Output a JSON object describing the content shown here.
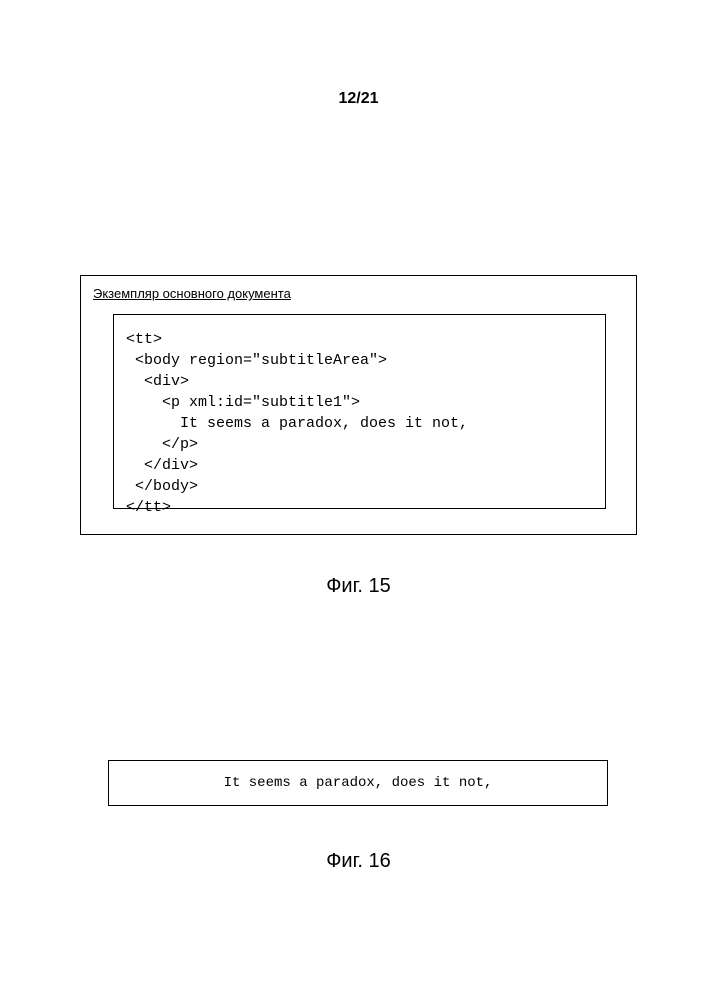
{
  "page_number": "12/21",
  "figure15": {
    "header": "Экземпляр основного документа",
    "code_lines": [
      "<tt>",
      " <body region=\"subtitleArea\">",
      "  <div>",
      "    <p xml:id=\"subtitle1\">",
      "      It seems a paradox, does it not,",
      "    </p>",
      "  </div>",
      " </body>",
      "</tt>"
    ],
    "label": "Фиг. 15"
  },
  "figure16": {
    "text": "It seems a paradox, does it not,",
    "label": "Фиг. 16"
  }
}
